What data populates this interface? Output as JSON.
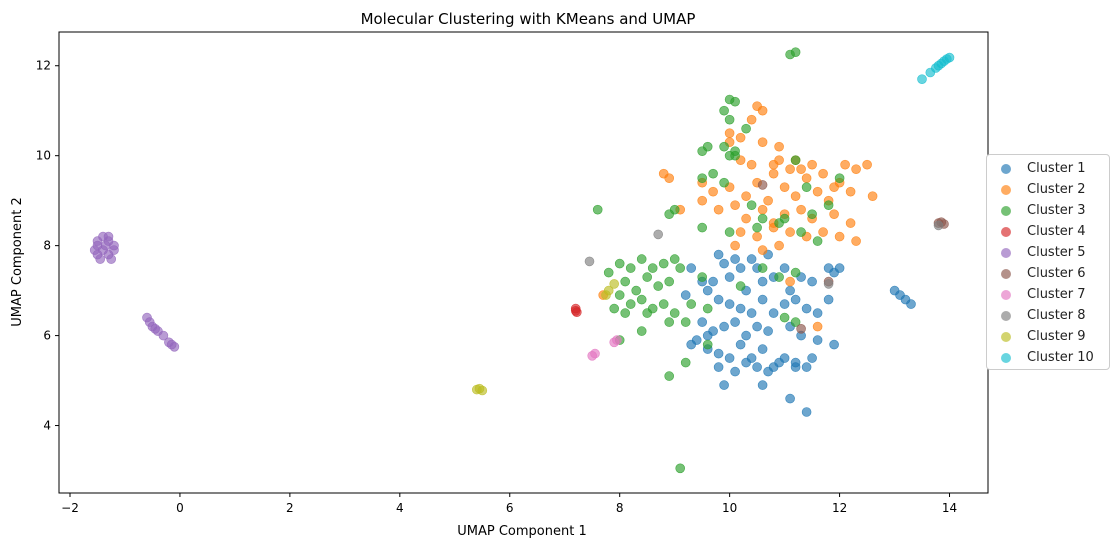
{
  "chart_data": {
    "type": "scatter",
    "title": "Molecular Clustering with KMeans and UMAP",
    "xlabel": "UMAP Component 1",
    "ylabel": "UMAP Component 2",
    "xlim": [
      -2.2,
      14.7
    ],
    "ylim": [
      2.5,
      12.75
    ],
    "xticks": [
      -2,
      0,
      2,
      4,
      6,
      8,
      10,
      12,
      14
    ],
    "yticks": [
      4,
      6,
      8,
      10,
      12
    ],
    "grid": false,
    "legend_position": "center-right, outside plot",
    "series": [
      {
        "name": "Cluster 1",
        "color": "#1f77b4",
        "points": [
          [
            9.3,
            7.5
          ],
          [
            9.5,
            7.2
          ],
          [
            9.6,
            7.0
          ],
          [
            9.7,
            7.2
          ],
          [
            9.8,
            7.8
          ],
          [
            9.9,
            7.6
          ],
          [
            10.0,
            7.3
          ],
          [
            10.1,
            7.7
          ],
          [
            10.2,
            7.5
          ],
          [
            10.3,
            7.0
          ],
          [
            10.4,
            7.7
          ],
          [
            10.5,
            7.5
          ],
          [
            10.6,
            7.2
          ],
          [
            10.7,
            7.8
          ],
          [
            10.8,
            7.3
          ],
          [
            11.0,
            7.5
          ],
          [
            11.1,
            7.0
          ],
          [
            11.3,
            7.3
          ],
          [
            11.5,
            7.2
          ],
          [
            11.8,
            7.5
          ],
          [
            11.9,
            7.4
          ],
          [
            12.0,
            7.5
          ],
          [
            9.8,
            6.8
          ],
          [
            10.0,
            6.7
          ],
          [
            10.2,
            6.6
          ],
          [
            10.4,
            6.5
          ],
          [
            10.6,
            6.8
          ],
          [
            10.8,
            6.5
          ],
          [
            11.0,
            6.7
          ],
          [
            11.2,
            6.8
          ],
          [
            11.4,
            6.6
          ],
          [
            11.6,
            6.5
          ],
          [
            11.8,
            6.8
          ],
          [
            9.5,
            6.3
          ],
          [
            9.7,
            6.1
          ],
          [
            9.9,
            6.2
          ],
          [
            10.1,
            6.3
          ],
          [
            10.3,
            6.0
          ],
          [
            10.5,
            6.2
          ],
          [
            10.7,
            6.1
          ],
          [
            11.1,
            6.2
          ],
          [
            11.3,
            6.0
          ],
          [
            11.6,
            5.9
          ],
          [
            11.9,
            5.8
          ],
          [
            9.4,
            5.9
          ],
          [
            9.6,
            5.7
          ],
          [
            9.8,
            5.6
          ],
          [
            10.0,
            5.5
          ],
          [
            10.2,
            5.8
          ],
          [
            10.4,
            5.5
          ],
          [
            10.6,
            5.7
          ],
          [
            10.8,
            5.3
          ],
          [
            11.0,
            5.5
          ],
          [
            11.2,
            5.4
          ],
          [
            11.4,
            5.3
          ],
          [
            11.5,
            5.5
          ],
          [
            9.8,
            5.3
          ],
          [
            10.1,
            5.2
          ],
          [
            10.3,
            5.4
          ],
          [
            10.5,
            5.3
          ],
          [
            10.7,
            5.2
          ],
          [
            9.9,
            4.9
          ],
          [
            10.6,
            4.9
          ],
          [
            11.1,
            4.6
          ],
          [
            11.4,
            4.3
          ],
          [
            9.2,
            6.9
          ],
          [
            9.3,
            5.8
          ],
          [
            9.6,
            6.0
          ],
          [
            13.0,
            7.0
          ],
          [
            13.1,
            6.9
          ],
          [
            13.2,
            6.8
          ],
          [
            13.3,
            6.7
          ],
          [
            11.2,
            5.3
          ],
          [
            10.9,
            5.4
          ]
        ]
      },
      {
        "name": "Cluster 2",
        "color": "#ff7f0e",
        "points": [
          [
            10.5,
            11.1
          ],
          [
            10.6,
            11.0
          ],
          [
            10.0,
            10.5
          ],
          [
            10.2,
            10.4
          ],
          [
            10.0,
            10.3
          ],
          [
            10.6,
            10.3
          ],
          [
            10.9,
            10.2
          ],
          [
            10.4,
            10.8
          ],
          [
            10.9,
            9.9
          ],
          [
            11.2,
            9.9
          ],
          [
            10.2,
            9.9
          ],
          [
            10.4,
            9.8
          ],
          [
            10.8,
            9.6
          ],
          [
            11.1,
            9.7
          ],
          [
            11.3,
            9.7
          ],
          [
            11.5,
            9.8
          ],
          [
            11.7,
            9.6
          ],
          [
            12.1,
            9.8
          ],
          [
            12.3,
            9.7
          ],
          [
            12.5,
            9.8
          ],
          [
            8.8,
            9.6
          ],
          [
            8.9,
            9.5
          ],
          [
            9.5,
            9.4
          ],
          [
            9.7,
            9.2
          ],
          [
            10.0,
            9.3
          ],
          [
            10.3,
            9.1
          ],
          [
            10.5,
            9.4
          ],
          [
            10.7,
            9.0
          ],
          [
            11.0,
            9.3
          ],
          [
            11.2,
            9.1
          ],
          [
            11.4,
            9.5
          ],
          [
            11.6,
            9.2
          ],
          [
            11.8,
            9.0
          ],
          [
            12.0,
            9.4
          ],
          [
            12.2,
            9.2
          ],
          [
            12.6,
            9.1
          ],
          [
            9.5,
            9.0
          ],
          [
            9.8,
            8.8
          ],
          [
            10.1,
            8.9
          ],
          [
            10.3,
            8.6
          ],
          [
            10.6,
            8.8
          ],
          [
            10.8,
            8.5
          ],
          [
            11.0,
            8.7
          ],
          [
            11.3,
            8.8
          ],
          [
            11.5,
            8.6
          ],
          [
            11.9,
            8.7
          ],
          [
            12.2,
            8.5
          ],
          [
            10.2,
            8.3
          ],
          [
            10.5,
            8.2
          ],
          [
            10.8,
            8.4
          ],
          [
            11.1,
            8.3
          ],
          [
            11.4,
            8.2
          ],
          [
            11.7,
            8.3
          ],
          [
            12.0,
            8.2
          ],
          [
            12.3,
            8.1
          ],
          [
            9.1,
            8.8
          ],
          [
            10.1,
            8.0
          ],
          [
            10.6,
            7.9
          ],
          [
            10.9,
            8.0
          ],
          [
            11.1,
            7.2
          ],
          [
            7.7,
            6.9
          ],
          [
            11.6,
            6.2
          ],
          [
            10.8,
            9.8
          ],
          [
            11.9,
            9.3
          ]
        ]
      },
      {
        "name": "Cluster 3",
        "color": "#2ca02c",
        "points": [
          [
            11.1,
            12.25
          ],
          [
            11.2,
            12.3
          ],
          [
            10.0,
            11.25
          ],
          [
            10.1,
            11.2
          ],
          [
            9.9,
            11.0
          ],
          [
            10.0,
            10.8
          ],
          [
            10.3,
            10.6
          ],
          [
            9.6,
            10.2
          ],
          [
            9.5,
            10.1
          ],
          [
            9.9,
            10.2
          ],
          [
            10.1,
            10.1
          ],
          [
            11.2,
            9.9
          ],
          [
            9.7,
            9.6
          ],
          [
            9.5,
            9.5
          ],
          [
            9.9,
            9.4
          ],
          [
            11.4,
            9.3
          ],
          [
            12.0,
            9.5
          ],
          [
            9.0,
            8.8
          ],
          [
            7.6,
            8.8
          ],
          [
            8.9,
            8.7
          ],
          [
            10.4,
            8.9
          ],
          [
            10.6,
            8.6
          ],
          [
            10.9,
            8.5
          ],
          [
            11.5,
            8.7
          ],
          [
            11.8,
            8.9
          ],
          [
            9.5,
            8.4
          ],
          [
            10.0,
            8.3
          ],
          [
            10.5,
            8.4
          ],
          [
            11.0,
            8.6
          ],
          [
            8.0,
            7.6
          ],
          [
            8.2,
            7.5
          ],
          [
            8.4,
            7.7
          ],
          [
            8.6,
            7.5
          ],
          [
            8.8,
            7.6
          ],
          [
            9.0,
            7.7
          ],
          [
            7.8,
            7.4
          ],
          [
            8.1,
            7.2
          ],
          [
            8.3,
            7.0
          ],
          [
            8.5,
            7.3
          ],
          [
            8.7,
            7.1
          ],
          [
            8.9,
            7.2
          ],
          [
            9.1,
            7.5
          ],
          [
            9.5,
            7.3
          ],
          [
            10.6,
            7.5
          ],
          [
            10.9,
            7.3
          ],
          [
            11.2,
            7.4
          ],
          [
            8.0,
            6.9
          ],
          [
            8.2,
            6.7
          ],
          [
            8.4,
            6.8
          ],
          [
            8.6,
            6.6
          ],
          [
            8.8,
            6.7
          ],
          [
            9.0,
            6.5
          ],
          [
            9.3,
            6.7
          ],
          [
            9.6,
            6.6
          ],
          [
            7.9,
            6.6
          ],
          [
            8.1,
            6.5
          ],
          [
            8.5,
            6.5
          ],
          [
            8.9,
            6.3
          ],
          [
            9.2,
            6.3
          ],
          [
            10.2,
            7.1
          ],
          [
            11.0,
            6.4
          ],
          [
            11.2,
            6.3
          ],
          [
            8.4,
            6.1
          ],
          [
            8.0,
            5.9
          ],
          [
            9.6,
            5.8
          ],
          [
            9.2,
            5.4
          ],
          [
            8.9,
            5.1
          ],
          [
            9.1,
            3.05
          ],
          [
            11.6,
            8.1
          ],
          [
            11.3,
            8.3
          ],
          [
            10.1,
            10.0
          ],
          [
            10.0,
            10.0
          ]
        ]
      },
      {
        "name": "Cluster 4",
        "color": "#d62728",
        "points": [
          [
            7.2,
            6.55
          ],
          [
            7.2,
            6.6
          ],
          [
            7.22,
            6.52
          ]
        ]
      },
      {
        "name": "Cluster 5",
        "color": "#9467bd",
        "points": [
          [
            -1.5,
            8.1
          ],
          [
            -1.4,
            8.2
          ],
          [
            -1.3,
            8.2
          ],
          [
            -1.5,
            8.0
          ],
          [
            -1.4,
            7.9
          ],
          [
            -1.3,
            7.8
          ],
          [
            -1.2,
            7.9
          ],
          [
            -1.5,
            7.8
          ],
          [
            -1.45,
            7.7
          ],
          [
            -1.25,
            7.7
          ],
          [
            -1.55,
            7.9
          ],
          [
            -1.35,
            8.0
          ],
          [
            -1.2,
            8.0
          ],
          [
            -1.3,
            8.1
          ],
          [
            -0.6,
            6.4
          ],
          [
            -0.55,
            6.3
          ],
          [
            -0.5,
            6.2
          ],
          [
            -0.45,
            6.15
          ],
          [
            -0.4,
            6.1
          ],
          [
            -0.3,
            6.0
          ],
          [
            -0.2,
            5.85
          ],
          [
            -0.1,
            5.75
          ],
          [
            -0.15,
            5.8
          ]
        ]
      },
      {
        "name": "Cluster 6",
        "color": "#8c564b",
        "points": [
          [
            10.6,
            9.35
          ],
          [
            11.8,
            7.2
          ],
          [
            11.3,
            6.15
          ],
          [
            13.8,
            8.5
          ],
          [
            13.9,
            8.48
          ],
          [
            13.85,
            8.52
          ]
        ]
      },
      {
        "name": "Cluster 7",
        "color": "#e377c2",
        "points": [
          [
            7.5,
            5.55
          ],
          [
            7.55,
            5.6
          ],
          [
            7.9,
            5.85
          ],
          [
            7.95,
            5.9
          ]
        ]
      },
      {
        "name": "Cluster 8",
        "color": "#7f7f7f",
        "points": [
          [
            7.45,
            7.65
          ],
          [
            8.7,
            8.25
          ],
          [
            11.8,
            7.15
          ],
          [
            13.8,
            8.45
          ]
        ]
      },
      {
        "name": "Cluster 9",
        "color": "#bcbd22",
        "points": [
          [
            5.4,
            4.8
          ],
          [
            5.5,
            4.78
          ],
          [
            5.45,
            4.82
          ],
          [
            7.8,
            7.0
          ],
          [
            7.9,
            7.15
          ],
          [
            7.75,
            6.9
          ]
        ]
      },
      {
        "name": "Cluster 10",
        "color": "#17becf",
        "points": [
          [
            13.5,
            11.7
          ],
          [
            13.65,
            11.85
          ],
          [
            13.75,
            11.95
          ],
          [
            13.8,
            12.0
          ],
          [
            13.85,
            12.05
          ],
          [
            13.9,
            12.1
          ],
          [
            13.95,
            12.15
          ],
          [
            14.0,
            12.18
          ]
        ]
      }
    ]
  }
}
